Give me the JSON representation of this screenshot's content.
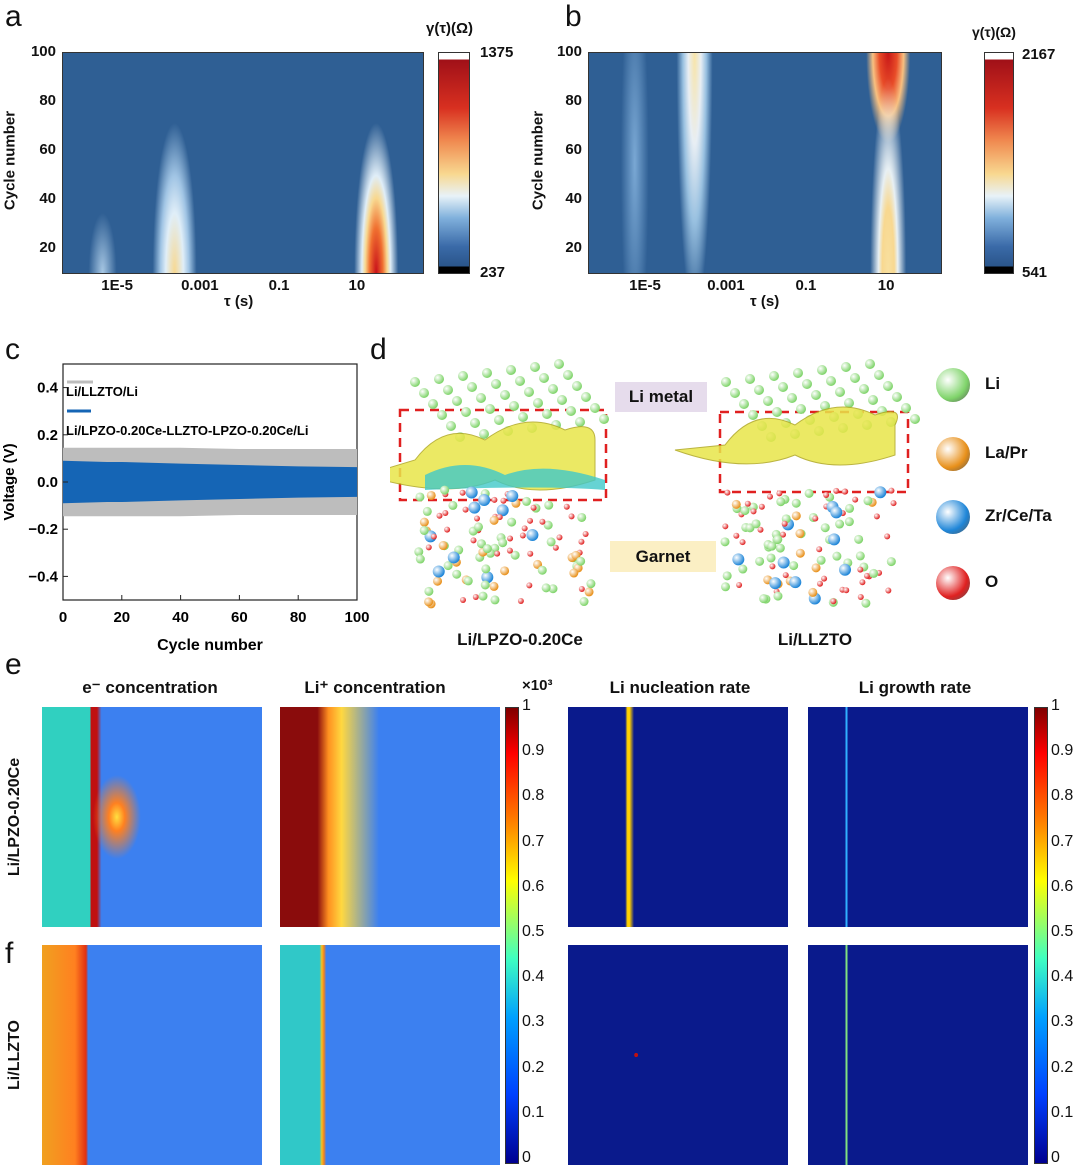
{
  "chart_data": [
    {
      "panel": "a",
      "type": "heatmap",
      "xlabel": "τ (s)",
      "ylabel": "Cycle number",
      "xscale": "log",
      "xticks": [
        "1E-5",
        "0.001",
        "0.1",
        "10"
      ],
      "yticks": [
        20,
        40,
        60,
        80,
        100
      ],
      "ylim": [
        10,
        100
      ],
      "colorbar": {
        "title": "γ(τ)(Ω)",
        "min": 237,
        "max": 1375,
        "colormap": "blue-white-yellow-red"
      },
      "peaks": [
        {
          "tau": 0.0003,
          "cycles": [
            10,
            55
          ],
          "max_level": "yellow"
        },
        {
          "tau": 7,
          "cycles": [
            10,
            50
          ],
          "max_level": "dark red"
        },
        {
          "tau": 8e-06,
          "cycles": [
            10,
            30
          ],
          "max_level": "light blue"
        }
      ]
    },
    {
      "panel": "b",
      "type": "heatmap",
      "xlabel": "τ (s)",
      "ylabel": "Cycle number",
      "xscale": "log",
      "xticks": [
        "1E-5",
        "0.001",
        "0.1",
        "10"
      ],
      "yticks": [
        20,
        40,
        60,
        80,
        100
      ],
      "ylim": [
        10,
        100
      ],
      "colorbar": {
        "title": "γ(τ)(Ω)",
        "min": 541,
        "max": 2167,
        "colormap": "blue-white-yellow-red"
      },
      "peaks": [
        {
          "tau": 0.0002,
          "cycles": [
            10,
            100
          ],
          "max_level": "light yellow"
        },
        {
          "tau": 7,
          "cycles": [
            10,
            100
          ],
          "max_level": "red"
        }
      ]
    },
    {
      "panel": "c",
      "type": "area",
      "xlabel": "Cycle number",
      "ylabel": "Voltage (V)",
      "xlim": [
        0,
        100
      ],
      "ylim": [
        -0.5,
        0.5
      ],
      "xticks": [
        0,
        20,
        40,
        60,
        80,
        100
      ],
      "yticks": [
        "0.4",
        "0.2",
        "0.0",
        "−0.2",
        "−0.4"
      ],
      "legend": "top-left",
      "series": [
        {
          "name": "Li/LLZTO/Li",
          "color": "#bdbdbd",
          "x": [
            0,
            20,
            40,
            60,
            80,
            100
          ],
          "amplitude": [
            0.145,
            0.145,
            0.145,
            0.14,
            0.14,
            0.14
          ]
        },
        {
          "name": "Li/LPZO-0.20Ce-LLZTO-LPZO-0.20Ce/Li",
          "color": "#1565b5",
          "x": [
            0,
            15,
            20,
            40,
            60,
            80,
            100
          ],
          "amplitude": [
            0.09,
            0.085,
            0.085,
            0.078,
            0.072,
            0.066,
            0.063
          ]
        }
      ]
    },
    {
      "panel": "e-f",
      "type": "heatmap",
      "colorbars": [
        {
          "multiplier": "×10³",
          "ticks": [
            "1",
            "0.9",
            "0.8",
            "0.7",
            "0.6",
            "0.5",
            "0.4",
            "0.3",
            "0.2",
            "0.1",
            "0"
          ]
        },
        {
          "ticks": [
            "1",
            "0.9",
            "0.8",
            "0.7",
            "0.6",
            "0.5",
            "0.4",
            "0.3",
            "0.2",
            "0.1",
            "0"
          ]
        }
      ],
      "colormap": "jet",
      "columns": [
        "e⁻ concentration",
        "Li⁺ concentration",
        "Li nucleation rate",
        "Li growth rate"
      ],
      "rows": [
        "Li/LPZO-0.20Ce",
        "Li/LLZTO"
      ]
    }
  ],
  "labels": {
    "a": "a",
    "b": "b",
    "c": "c",
    "d": "d",
    "e": "e",
    "f": "f"
  },
  "panel_a": {
    "cbar_title": "γ(τ)(Ω)",
    "cbar_max": "1375",
    "cbar_min": "237",
    "xlabel": "τ (s)",
    "ylabel": "Cycle number",
    "xticks": [
      "1E-5",
      "0.001",
      "0.1",
      "10"
    ],
    "yticks": [
      "100",
      "80",
      "60",
      "40",
      "20"
    ]
  },
  "panel_b": {
    "cbar_title": "γ(τ)(Ω)",
    "cbar_max": "2167",
    "cbar_min": "541",
    "xlabel": "τ (s)",
    "ylabel": "Cycle number",
    "xticks": [
      "1E-5",
      "0.001",
      "0.1",
      "10"
    ],
    "yticks": [
      "100",
      "80",
      "60",
      "40",
      "20"
    ]
  },
  "panel_c": {
    "xlabel": "Cycle number",
    "ylabel": "Voltage (V)",
    "legend": [
      "Li/LLZTO/Li",
      "Li/LPZO-0.20Ce-LLZTO-LPZO-0.20Ce/Li"
    ],
    "xticks": [
      "0",
      "20",
      "40",
      "60",
      "80",
      "100"
    ],
    "yticks": [
      "0.4",
      "0.2",
      "0.0",
      "−0.2",
      "−0.4"
    ]
  },
  "panel_d": {
    "li_metal": "Li metal",
    "garnet": "Garnet",
    "left_caption": "Li/LPZO-0.20Ce",
    "right_caption": "Li/LLZTO",
    "legend": [
      {
        "label": "Li",
        "color": "#7fd46a"
      },
      {
        "label": "La/Pr",
        "color": "#e8901a"
      },
      {
        "label": "Zr/Ce/Ta",
        "color": "#1f86d8"
      },
      {
        "label": "O",
        "color": "#e02020"
      }
    ]
  },
  "panel_ef": {
    "columns": [
      "e⁻ concentration",
      "Li⁺ concentration",
      "Li nucleation rate",
      "Li growth rate"
    ],
    "rows": [
      "Li/LPZO-0.20Ce",
      "Li/LLZTO"
    ],
    "multiplier": "×10³",
    "ticks": [
      "1",
      "0.9",
      "0.8",
      "0.7",
      "0.6",
      "0.5",
      "0.4",
      "0.3",
      "0.2",
      "0.1",
      "0"
    ]
  }
}
